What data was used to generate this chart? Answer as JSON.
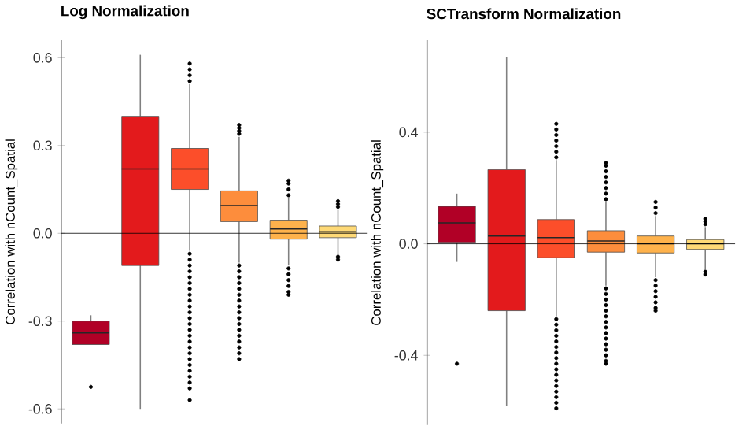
{
  "chart_data": [
    {
      "type": "box",
      "title": "Log Normalization",
      "ylabel": "Correlation with nCount_Spatial",
      "categories": [
        null,
        null,
        null,
        null,
        null,
        null
      ],
      "colors": [
        "#b10026",
        "#e31a1c",
        "#fc4e2a",
        "#fd8d3c",
        "#feb24c",
        "#fed976"
      ],
      "boxes": [
        {
          "low": -0.38,
          "q1": -0.38,
          "median": -0.34,
          "q3": -0.3,
          "high": -0.28,
          "outliers": [
            -0.525
          ]
        },
        {
          "low": -0.6,
          "q1": -0.11,
          "median": 0.22,
          "q3": 0.4,
          "high": 0.61
        },
        {
          "low": -0.06,
          "q1": 0.15,
          "median": 0.22,
          "q3": 0.29,
          "high": 0.51,
          "outliers": [
            0.52,
            0.54,
            0.56,
            0.58,
            -0.07,
            -0.09,
            -0.11,
            -0.13,
            -0.15,
            -0.17,
            -0.19,
            -0.21,
            -0.23,
            -0.25,
            -0.27,
            -0.29,
            -0.31,
            -0.33,
            -0.35,
            -0.37,
            -0.39,
            -0.41,
            -0.43,
            -0.45,
            -0.47,
            -0.49,
            -0.51,
            -0.53,
            -0.57
          ]
        },
        {
          "low": -0.1,
          "q1": 0.04,
          "median": 0.095,
          "q3": 0.145,
          "high": 0.33,
          "outliers": [
            0.34,
            0.35,
            0.36,
            0.37,
            -0.11,
            -0.13,
            -0.15,
            -0.17,
            -0.19,
            -0.21,
            -0.23,
            -0.25,
            -0.27,
            -0.29,
            -0.31,
            -0.33,
            -0.35,
            -0.37,
            -0.39,
            -0.41,
            -0.43
          ]
        },
        {
          "low": -0.11,
          "q1": -0.02,
          "median": 0.015,
          "q3": 0.045,
          "high": 0.12,
          "outliers": [
            0.13,
            0.15,
            0.17,
            0.18,
            -0.12,
            -0.14,
            -0.16,
            -0.18,
            -0.2,
            -0.21
          ]
        },
        {
          "low": -0.07,
          "q1": -0.015,
          "median": 0.005,
          "q3": 0.025,
          "high": 0.08,
          "outliers": [
            0.09,
            0.1,
            0.11,
            -0.08,
            -0.09
          ]
        }
      ],
      "ylim": [
        -0.65,
        0.66
      ],
      "yticks": [
        -0.6,
        -0.3,
        {
          "value": 0,
          "label": "0.0"
        },
        0.3,
        0.6
      ],
      "ref_lines": [
        {
          "axis": "y",
          "value": 0,
          "color": "#000000"
        }
      ]
    },
    {
      "type": "box",
      "title": "SCTransform Normalization",
      "ylabel": "Correlation with nCount_Spatial",
      "categories": [
        null,
        null,
        null,
        null,
        null,
        null
      ],
      "colors": [
        "#b10026",
        "#e31a1c",
        "#fc4e2a",
        "#fd8d3c",
        "#feb24c",
        "#fed976"
      ],
      "boxes": [
        {
          "low": -0.065,
          "q1": 0.005,
          "median": 0.075,
          "q3": 0.134,
          "high": 0.18,
          "outliers": [
            -0.43
          ]
        },
        {
          "low": -0.58,
          "q1": -0.24,
          "median": 0.028,
          "q3": 0.266,
          "high": 0.67
        },
        {
          "low": -0.26,
          "q1": -0.05,
          "median": 0.022,
          "q3": 0.087,
          "high": 0.3,
          "outliers": [
            0.31,
            0.33,
            0.35,
            0.37,
            0.39,
            0.41,
            0.43,
            -0.27,
            -0.29,
            -0.31,
            -0.33,
            -0.35,
            -0.37,
            -0.39,
            -0.41,
            -0.43,
            -0.45,
            -0.47,
            -0.49,
            -0.51,
            -0.53,
            -0.55,
            -0.57,
            -0.59
          ]
        },
        {
          "low": -0.15,
          "q1": -0.03,
          "median": 0.01,
          "q3": 0.047,
          "high": 0.15,
          "outliers": [
            0.16,
            0.18,
            0.2,
            0.22,
            0.24,
            0.26,
            0.28,
            0.29,
            -0.16,
            -0.18,
            -0.2,
            -0.22,
            -0.24,
            -0.26,
            -0.28,
            -0.3,
            -0.32,
            -0.34,
            -0.36,
            -0.38,
            -0.4,
            -0.42,
            -0.43
          ]
        },
        {
          "low": -0.12,
          "q1": -0.033,
          "median": 0.0,
          "q3": 0.028,
          "high": 0.1,
          "outliers": [
            0.11,
            0.13,
            0.15,
            -0.13,
            -0.15,
            -0.17,
            -0.19,
            -0.21,
            -0.23,
            -0.24
          ]
        },
        {
          "low": -0.09,
          "q1": -0.02,
          "median": 0.0,
          "q3": 0.015,
          "high": 0.06,
          "outliers": [
            0.07,
            0.08,
            0.09,
            -0.1,
            -0.11
          ]
        }
      ],
      "ylim": [
        -0.65,
        0.73
      ],
      "yticks": [
        -0.4,
        {
          "value": 0,
          "label": "0.0"
        },
        0.4
      ],
      "ref_lines": [
        {
          "axis": "y",
          "value": 0,
          "color": "#000000"
        }
      ]
    }
  ]
}
